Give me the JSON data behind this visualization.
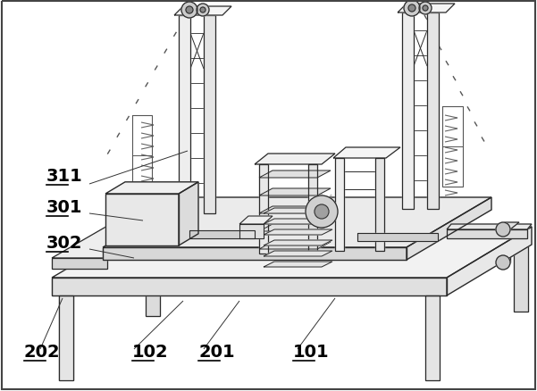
{
  "bg_color": "#ffffff",
  "line_color": "#2a2a2a",
  "label_color": "#000000",
  "label_fontsize": 14,
  "figsize": [
    6.01,
    4.39
  ],
  "dpi": 100,
  "border": true
}
